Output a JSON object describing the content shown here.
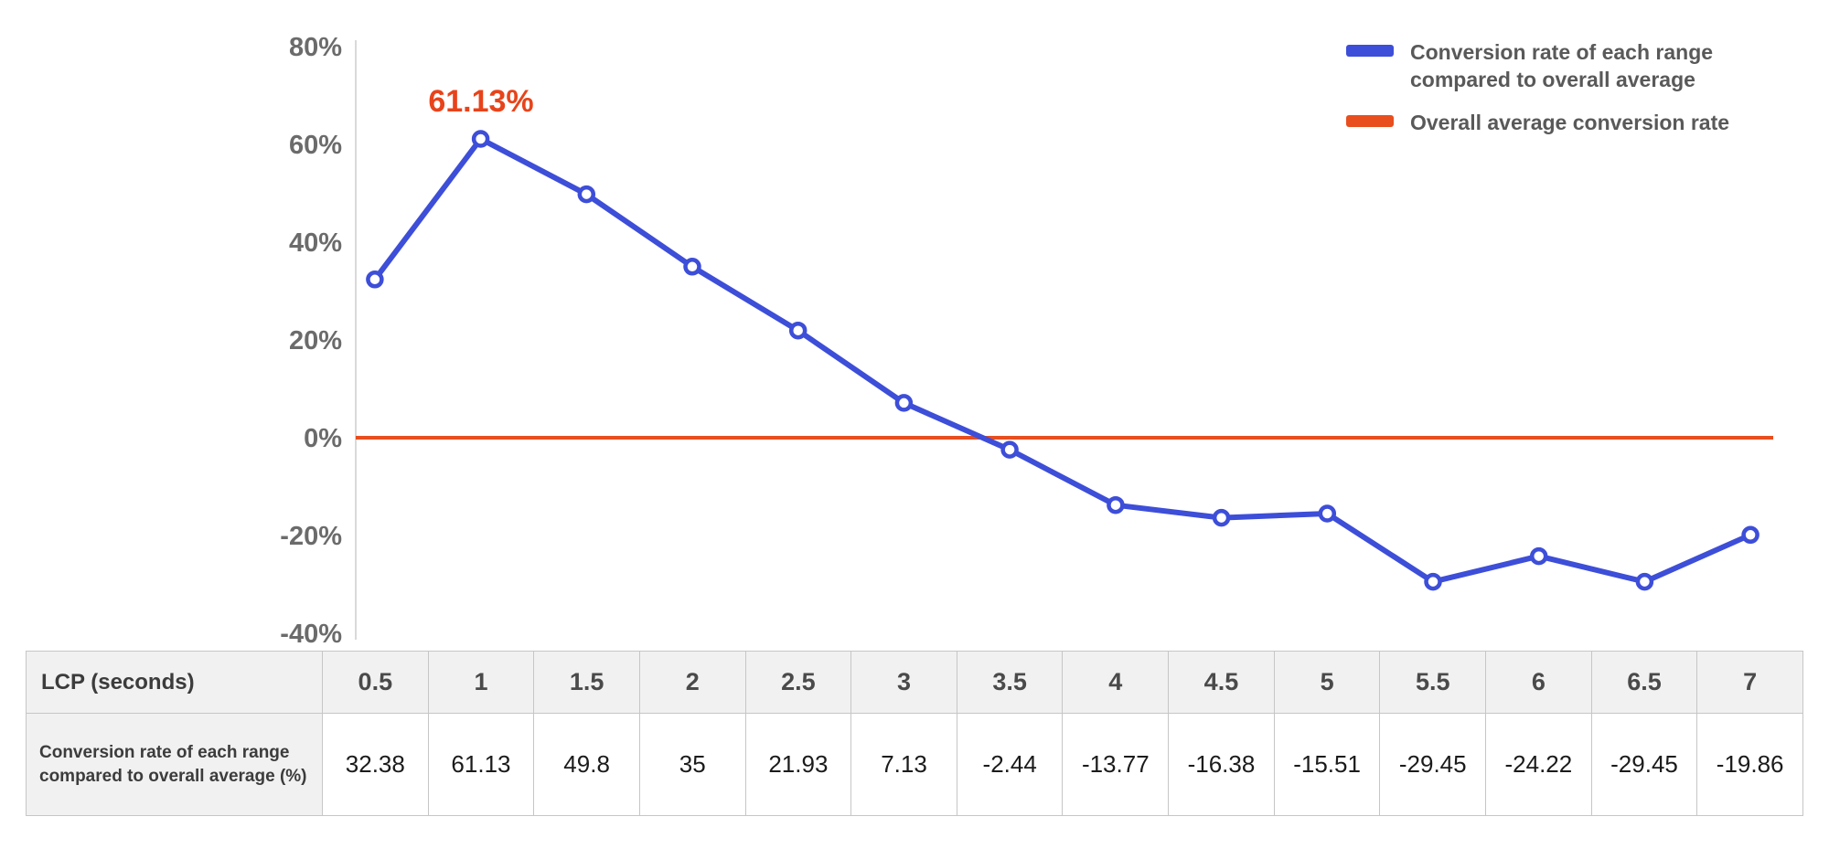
{
  "chart_data": {
    "type": "line",
    "title": "",
    "xlabel": "LCP (seconds)",
    "ylabel": "",
    "ylim": [
      -40,
      80
    ],
    "yticks": [
      80,
      60,
      40,
      20,
      0,
      -20,
      -40
    ],
    "ytick_suffix": "%",
    "x": [
      0.5,
      1,
      1.5,
      2,
      2.5,
      3,
      3.5,
      4,
      4.5,
      5,
      5.5,
      6,
      6.5,
      7
    ],
    "series": [
      {
        "name": "Conversion rate of each range compared to overall average",
        "type": "line",
        "color": "#3d4ed8",
        "values": [
          32.38,
          61.13,
          49.8,
          35,
          21.93,
          7.13,
          -2.44,
          -13.77,
          -16.38,
          -15.51,
          -29.45,
          -24.22,
          -29.45,
          -19.86
        ]
      },
      {
        "name": "Overall average conversion rate",
        "type": "baseline",
        "color": "#e84e1e",
        "value": 0
      }
    ],
    "annotation": {
      "text": "61.13%",
      "x": 1,
      "y": 61.13,
      "color": "#e8431a"
    },
    "legend_position": "top-right",
    "grid": false
  },
  "legend": {
    "items": [
      {
        "label": "Conversion rate of each range compared to overall average",
        "color": "#3d4ed8"
      },
      {
        "label": "Overall average conversion rate",
        "color": "#e84e1e"
      }
    ]
  },
  "table": {
    "header_label": "LCP (seconds)",
    "row_label": "Conversion rate of each range compared to overall average (%)",
    "columns": [
      "0.5",
      "1",
      "1.5",
      "2",
      "2.5",
      "3",
      "3.5",
      "4",
      "4.5",
      "5",
      "5.5",
      "6",
      "6.5",
      "7"
    ],
    "values": [
      "32.38",
      "61.13",
      "49.8",
      "35",
      "21.93",
      "7.13",
      "-2.44",
      "-13.77",
      "-16.38",
      "-15.51",
      "-29.45",
      "-24.22",
      "-29.45",
      "-19.86"
    ]
  }
}
